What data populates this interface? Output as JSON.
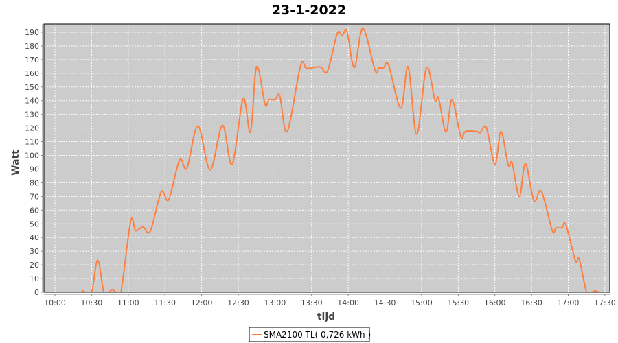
{
  "chart_data": {
    "type": "line",
    "title": "23-1-2022",
    "xlabel": "tijd",
    "ylabel": "Watt",
    "xlim": [
      "09:51",
      "17:34"
    ],
    "ylim": [
      0,
      196
    ],
    "x_ticks": [
      "10:00",
      "10:30",
      "11:00",
      "11:30",
      "12:00",
      "12:30",
      "13:00",
      "13:30",
      "14:00",
      "14:30",
      "15:00",
      "15:30",
      "16:00",
      "16:30",
      "17:00",
      "17:30"
    ],
    "y_ticks": [
      0,
      10,
      20,
      30,
      40,
      50,
      60,
      70,
      80,
      90,
      100,
      110,
      120,
      130,
      140,
      150,
      160,
      170,
      180,
      190
    ],
    "grid": true,
    "legend_position": "bottom",
    "colors": {
      "series": "#ff7f3f",
      "plot_background": "#cccccc",
      "grid": "#ffffff"
    },
    "series": [
      {
        "name": "SMA2100 TL( 0,726 kWh )",
        "points": [
          [
            "09:59",
            0
          ],
          [
            "10:10",
            0
          ],
          [
            "10:21",
            0
          ],
          [
            "10:23",
            1
          ],
          [
            "10:25",
            0
          ],
          [
            "10:30",
            0
          ],
          [
            "10:35",
            23.5
          ],
          [
            "10:40",
            0
          ],
          [
            "10:44",
            0
          ],
          [
            "10:47",
            2
          ],
          [
            "10:50",
            0
          ],
          [
            "10:54",
            0
          ],
          [
            "11:02",
            52
          ],
          [
            "11:06",
            45
          ],
          [
            "11:12",
            47.8
          ],
          [
            "11:18",
            44.6
          ],
          [
            "11:27",
            73.4
          ],
          [
            "11:33",
            67.6
          ],
          [
            "11:42",
            96.6
          ],
          [
            "11:48",
            90.7
          ],
          [
            "11:57",
            121.6
          ],
          [
            "12:07",
            89.4
          ],
          [
            "12:17",
            122
          ],
          [
            "12:25",
            93.6
          ],
          [
            "12:34",
            141.3
          ],
          [
            "12:40",
            117
          ],
          [
            "12:45",
            164.8
          ],
          [
            "12:52",
            137.2
          ],
          [
            "12:55",
            140.8
          ],
          [
            "13:00",
            140.7
          ],
          [
            "13:04",
            143.5
          ],
          [
            "13:10",
            117.4
          ],
          [
            "13:21",
            165.6
          ],
          [
            "13:26",
            163.6
          ],
          [
            "13:37",
            164.7
          ],
          [
            "13:43",
            161.5
          ],
          [
            "13:51",
            189
          ],
          [
            "13:55",
            187.5
          ],
          [
            "13:59",
            190.5
          ],
          [
            "14:05",
            164.3
          ],
          [
            "14:12",
            192.8
          ],
          [
            "14:22",
            162
          ],
          [
            "14:25",
            164
          ],
          [
            "14:29",
            164
          ],
          [
            "14:33",
            166
          ],
          [
            "14:43",
            134.6
          ],
          [
            "14:49",
            164.8
          ],
          [
            "14:56",
            115.4
          ],
          [
            "15:04",
            164
          ],
          [
            "15:11",
            140.2
          ],
          [
            "15:14",
            141.8
          ],
          [
            "15:20",
            117
          ],
          [
            "15:25",
            140.8
          ],
          [
            "15:32",
            114
          ],
          [
            "15:36",
            117.5
          ],
          [
            "15:45",
            117.4
          ],
          [
            "15:48",
            116.5
          ],
          [
            "15:53",
            120.4
          ],
          [
            "16:00",
            93.6
          ],
          [
            "16:05",
            117.4
          ],
          [
            "16:11",
            92.7
          ],
          [
            "16:14",
            94.9
          ],
          [
            "16:20",
            70
          ],
          [
            "16:25",
            93.9
          ],
          [
            "16:32",
            66.7
          ],
          [
            "16:38",
            73.8
          ],
          [
            "16:47",
            45
          ],
          [
            "16:50",
            47.1
          ],
          [
            "16:55",
            47.1
          ],
          [
            "16:58",
            49.5
          ],
          [
            "17:06",
            22.8
          ],
          [
            "17:09",
            24.3
          ],
          [
            "17:15",
            0
          ],
          [
            "17:19",
            0
          ],
          [
            "17:22",
            1
          ],
          [
            "17:25",
            0
          ]
        ]
      }
    ]
  }
}
